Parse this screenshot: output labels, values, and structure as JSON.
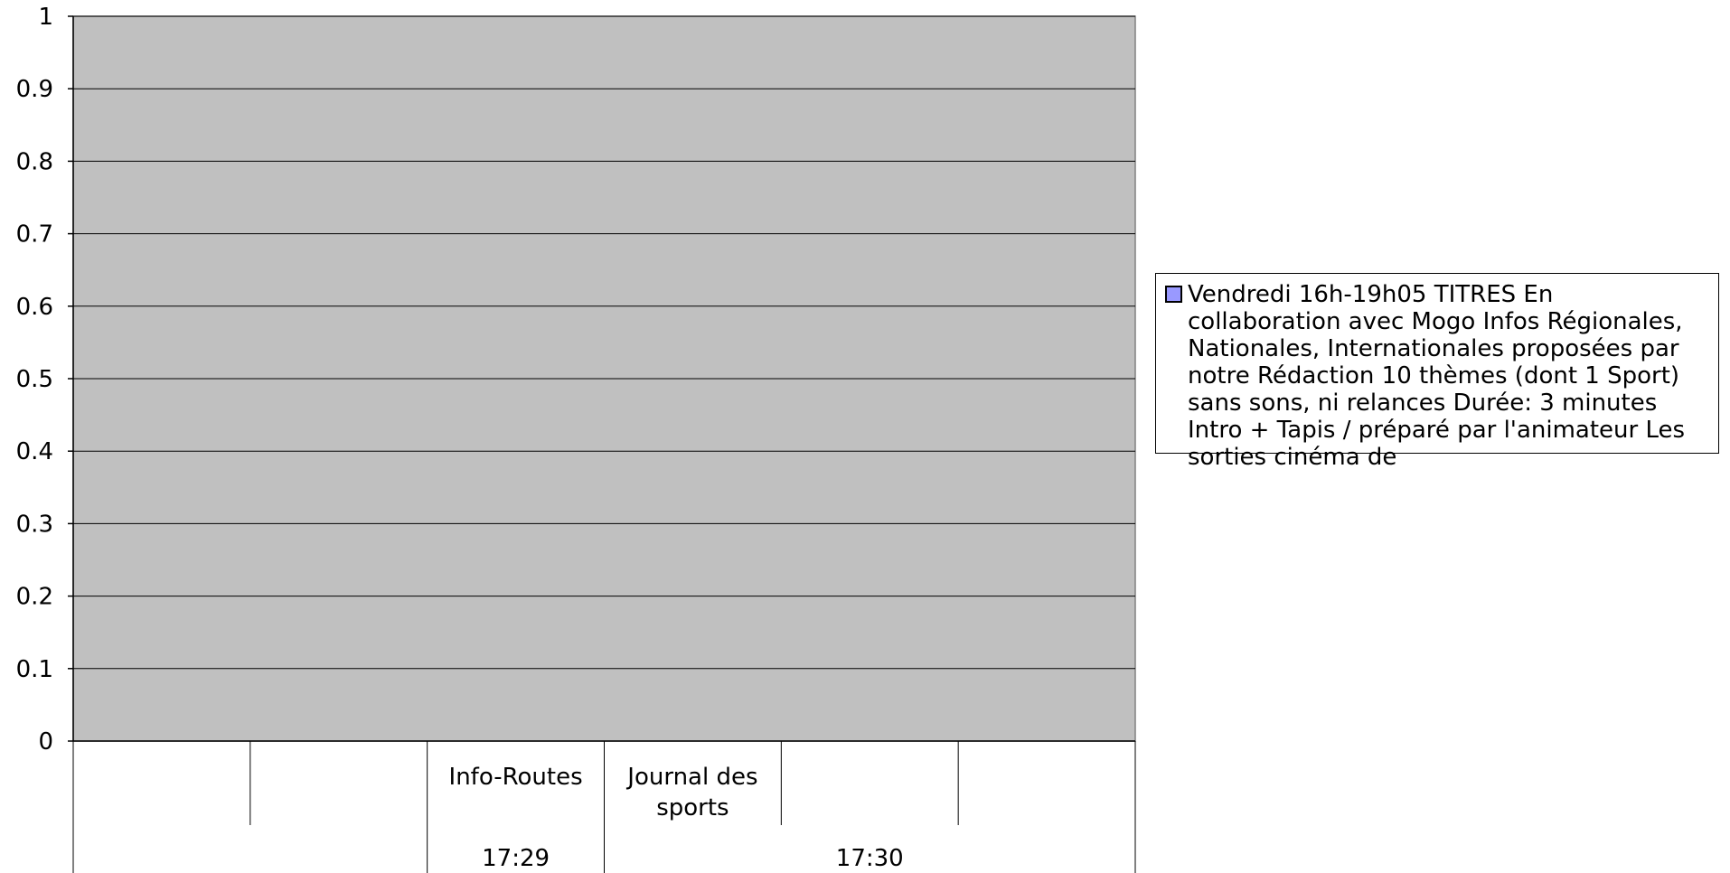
{
  "chart_data": {
    "type": "bar",
    "ylim": [
      0,
      1
    ],
    "y_ticks": [
      "0",
      "0.1",
      "0.2",
      "0.3",
      "0.4",
      "0.5",
      "0.6",
      "0.7",
      "0.8",
      "0.9",
      "1"
    ],
    "categories": [
      {
        "label": "",
        "group": ""
      },
      {
        "label": "",
        "group": ""
      },
      {
        "label": "Info-Routes",
        "group": "17:29"
      },
      {
        "label": "Journal des sports",
        "group": "17:30"
      },
      {
        "label": "",
        "group": "17:30"
      },
      {
        "label": "",
        "group": "17:30"
      }
    ],
    "group_labels": [
      "",
      "17:29",
      "17:30"
    ],
    "series": [
      {
        "name": "Vendredi 16h-19h05 TITRES En collaboration avec Mogo Infos Régionales, Nationales, Internationales proposées par notre Rédaction 10 thèmes (dont 1 Sport) sans sons, ni relances Durée: 3 minutes Intro + Tapis / préparé par l'animateur Les sorties cinéma de",
        "values": [
          0,
          0,
          0,
          0,
          0,
          0
        ],
        "color": "#9999ff"
      }
    ],
    "plot_background": "#c0c0c0",
    "grid": true,
    "legend_position": "right"
  }
}
